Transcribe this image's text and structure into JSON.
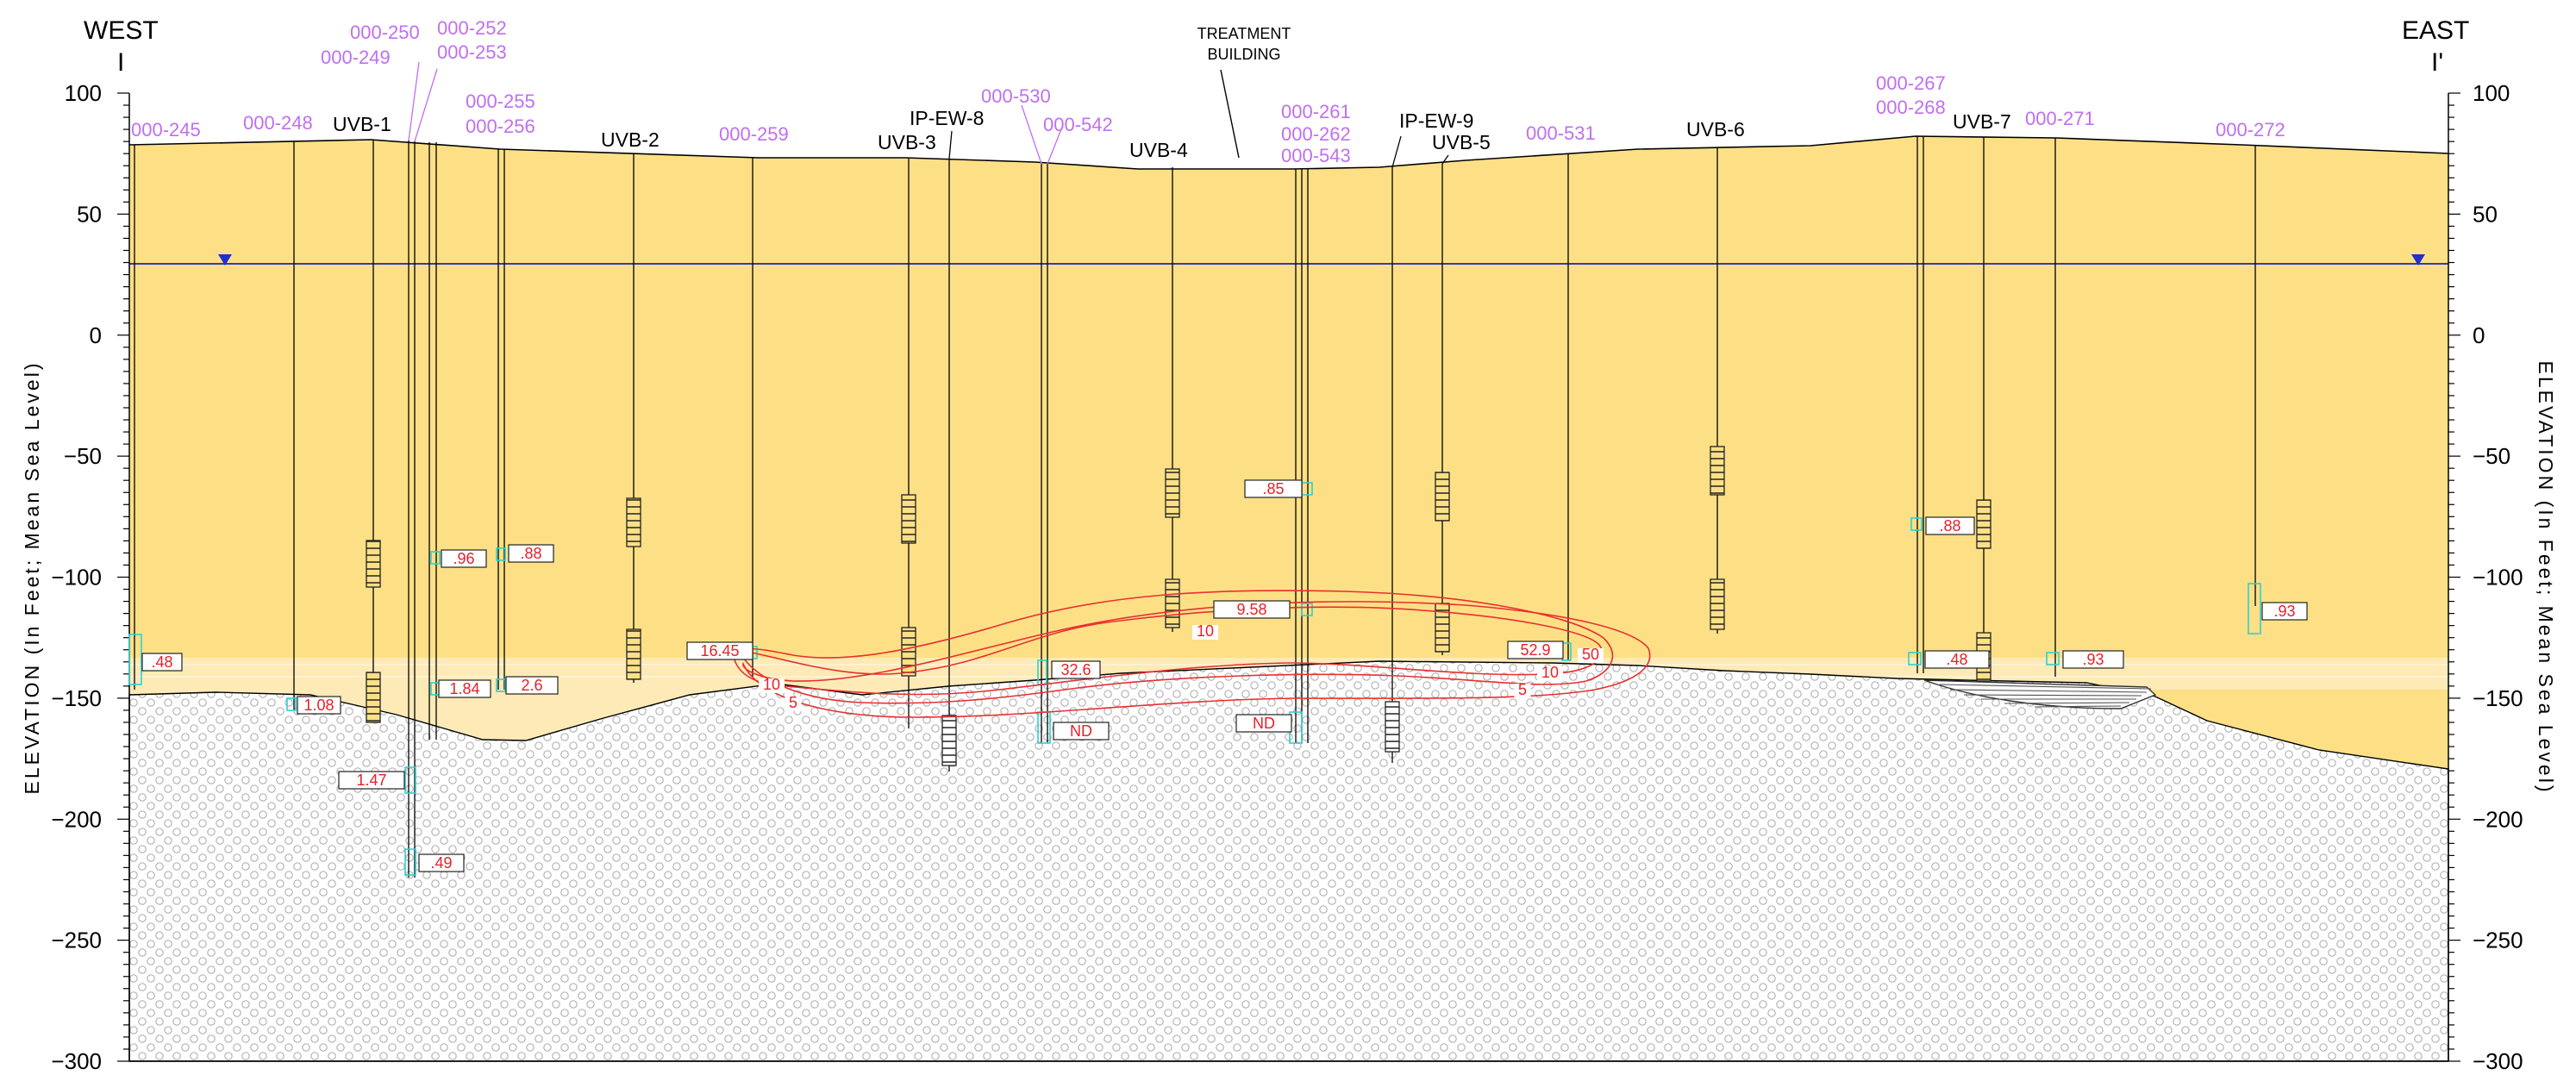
{
  "header": {
    "west_label": "WEST",
    "east_label": "EAST",
    "west_section_mark": "I",
    "east_section_mark": "I'"
  },
  "axis": {
    "label_left": "ELEVATION (In Feet; Mean Sea Level)",
    "label_right": "ELEVATION (In Feet; Mean Sea Level)",
    "ymin": -300,
    "ymax": 100,
    "major_ticks": [
      "100",
      "50",
      "0",
      "-50",
      "-100",
      "-150",
      "-200",
      "-250",
      "-300"
    ],
    "minor_step": 5
  },
  "building": {
    "line1": "TREATMENT",
    "line2": "BUILDING"
  },
  "wells_purple": [
    "000-245",
    "000-248",
    "000-250",
    "000-249",
    "000-252",
    "000-253",
    "000-255",
    "000-256",
    "000-259",
    "000-530",
    "000-542",
    "000-261",
    "000-262",
    "000-543",
    "000-531",
    "000-267",
    "000-268",
    "000-271",
    "000-272"
  ],
  "wells_black": [
    "UVB-1",
    "UVB-2",
    "IP-EW-8",
    "UVB-3",
    "UVB-4",
    "IP-EW-9",
    "UVB-5",
    "UVB-6",
    "UVB-7"
  ],
  "results": [
    ".48",
    "1.08",
    "1.47",
    ".49",
    ".96",
    "1.84",
    ".88",
    "2.6",
    "16.45",
    "32.6",
    "ND",
    ".85",
    "9.58",
    "ND",
    "52.9",
    ".88",
    ".48",
    ".93",
    ".93"
  ],
  "contours": [
    "10",
    "10",
    "5",
    "50",
    "10",
    "5"
  ],
  "colors": {
    "saturated_zone": "#fde086",
    "transition_band": "#fdeab6",
    "water_table": "#2f3db8",
    "result_text": "#e8202a",
    "well_id_purple": "#c06ff0",
    "screen_cyan": "#2fd0d0",
    "bedrock_fill": "#ffffff",
    "bedrock_pattern": "#b5b5b5"
  }
}
